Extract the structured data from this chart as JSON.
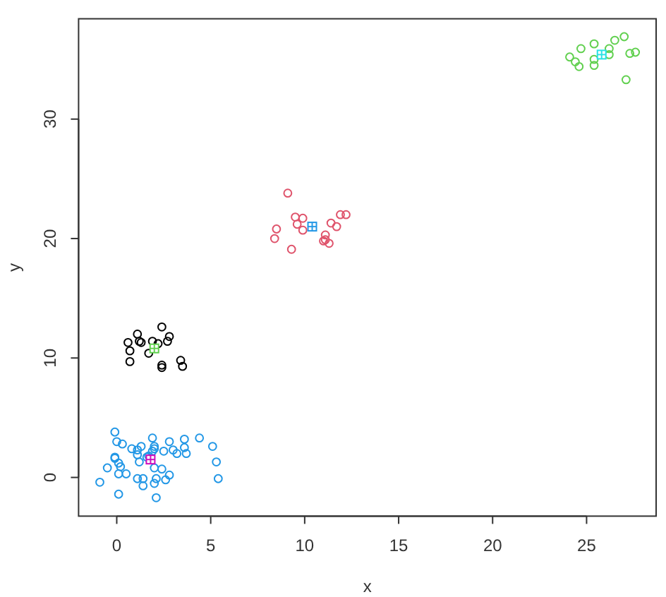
{
  "chart_data": {
    "type": "scatter",
    "xlabel": "x",
    "ylabel": "y",
    "xlim": [
      -2.03,
      28.7
    ],
    "ylim": [
      -3.24,
      38.4
    ],
    "xticks": [
      0,
      5,
      10,
      15,
      20,
      25
    ],
    "yticks": [
      0,
      10,
      20,
      30
    ],
    "marker": "circle",
    "series": [
      {
        "color": "#000000",
        "x": [
          0.6,
          0.7,
          0.7,
          1.1,
          1.2,
          1.3,
          1.9,
          2.2,
          2.8,
          2.7,
          2.4,
          1.7,
          2.4,
          2.4,
          3.4,
          3.5
        ],
        "values": [
          11.3,
          10.6,
          9.7,
          12.0,
          11.4,
          11.3,
          11.4,
          11.2,
          11.8,
          11.4,
          12.6,
          10.4,
          9.4,
          9.2,
          9.8,
          9.3
        ]
      },
      {
        "color": "#df536b",
        "x": [
          9.1,
          8.5,
          8.4,
          9.5,
          9.6,
          9.9,
          9.9,
          9.3,
          11.1,
          11.0,
          11.1,
          11.3,
          11.4,
          11.7,
          11.9,
          12.2
        ],
        "values": [
          23.8,
          20.8,
          20.0,
          21.8,
          21.2,
          21.7,
          20.7,
          19.1,
          20.3,
          19.8,
          19.9,
          19.6,
          21.3,
          21.0,
          22.0,
          22.0
        ]
      },
      {
        "color": "#61d04f",
        "x": [
          24.1,
          24.4,
          24.6,
          24.7,
          25.4,
          25.4,
          25.4,
          26.2,
          26.2,
          26.5,
          27.0,
          27.3,
          27.6,
          27.1
        ],
        "values": [
          35.2,
          34.8,
          34.4,
          35.9,
          36.3,
          34.5,
          35.0,
          35.4,
          35.9,
          36.6,
          36.9,
          35.5,
          35.6,
          33.3
        ]
      },
      {
        "color": "#2297e6",
        "x": [
          -0.1,
          0.0,
          0.3,
          -0.1,
          -0.1,
          0.1,
          0.2,
          -0.5,
          -0.9,
          0.1,
          0.5,
          0.1,
          0.8,
          1.1,
          1.3,
          1.1,
          1.6,
          1.2,
          1.7,
          1.9,
          2.0,
          2.0,
          1.9,
          2.5,
          2.8,
          3.0,
          3.2,
          3.6,
          3.6,
          3.7,
          4.4,
          5.1,
          5.3,
          5.4,
          2.4,
          2.0,
          2.8,
          2.6,
          2.1,
          2.0,
          1.1,
          1.4,
          1.4,
          2.1
        ],
        "values": [
          3.8,
          3.0,
          2.8,
          1.7,
          1.6,
          1.2,
          0.9,
          0.8,
          -0.4,
          -1.4,
          0.3,
          0.3,
          2.4,
          2.3,
          2.6,
          1.9,
          1.7,
          1.3,
          1.8,
          3.3,
          2.6,
          2.4,
          2.2,
          2.2,
          3.0,
          2.3,
          2.0,
          3.2,
          2.5,
          2.0,
          3.3,
          2.6,
          1.3,
          -0.1,
          0.7,
          0.8,
          0.2,
          -0.2,
          -0.1,
          -0.5,
          -0.1,
          -0.1,
          -0.7,
          -1.7
        ]
      },
      {
        "marker": "square",
        "colors": [
          "#61d04f",
          "#2297e6",
          "#28e2e5",
          "#cd0bbc"
        ],
        "x": [
          2.0,
          10.4,
          25.8,
          1.8
        ],
        "values": [
          10.8,
          21.0,
          35.4,
          1.5
        ]
      }
    ]
  }
}
